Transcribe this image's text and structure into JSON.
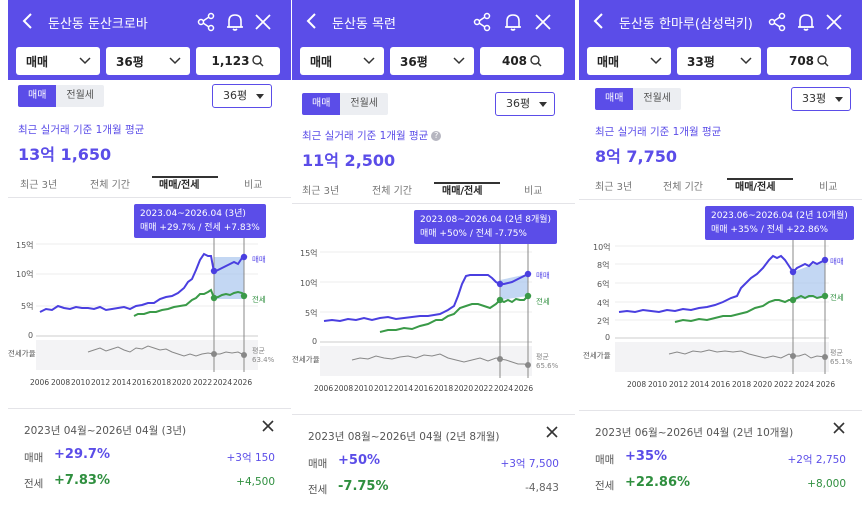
{
  "icons": [
    "back-icon",
    "share-icon",
    "bell-icon",
    "close-icon",
    "chevron-down-icon",
    "search-icon"
  ],
  "colors": {
    "brand": "#5b4de8",
    "sale_line": "#4a3fe0",
    "jeonse_line": "#3a9a48",
    "ratio_line": "#888888"
  },
  "panels": [
    {
      "title": "둔산동 둔산크로바",
      "trade_type": "매매",
      "size": "36평",
      "count": "1,123",
      "toggle": [
        "매매",
        "전월세"
      ],
      "size_dropdown": "36평",
      "subtitle": "최근 실거래 기준 1개월 평균",
      "price": "13억 1,650",
      "tabs": [
        "최근 3년",
        "전체 기간",
        "매매/전세",
        "비교"
      ],
      "tooltip_range": "2023.04~2026.04 (3년)",
      "tooltip_change": "매매 +29.7%  /  전세 +7.83%",
      "y_labels": [
        "15억",
        "10억",
        "5억",
        "0"
      ],
      "x_labels": [
        "2006",
        "2008",
        "2010",
        "2012",
        "2014",
        "2016",
        "2018",
        "2020",
        "2022",
        "2024",
        "2026"
      ],
      "label_sale": "매매",
      "label_jeonse": "전세",
      "label_ratio": "전세가율",
      "avg_label": "평균",
      "avg_value": "63.4%",
      "summary_period": "2023년 04월~2026년 04월 (3년)",
      "sale_label": "매매",
      "sale_pct": "+29.7%",
      "sale_amt": "+3억 150",
      "jeonse_label": "전세",
      "jeonse_pct": "+7.83%",
      "jeonse_amt": "+4,500"
    },
    {
      "title": "둔산동 목련",
      "trade_type": "매매",
      "size": "36평",
      "count": "408",
      "toggle": [
        "매매",
        "전월세"
      ],
      "size_dropdown": "36평",
      "subtitle": "최근 실거래 기준 1개월 평균",
      "price": "11억 2,500",
      "tabs": [
        "최근 3년",
        "전체 기간",
        "매매/전세",
        "비교"
      ],
      "tooltip_range": "2023.08~2026.04 (2년 8개월)",
      "tooltip_change": "매매 +50%  /  전세 -7.75%",
      "y_labels": [
        "15억",
        "10억",
        "5억",
        "0"
      ],
      "x_labels": [
        "2006",
        "2008",
        "2010",
        "2012",
        "2014",
        "2016",
        "2018",
        "2020",
        "2022",
        "2024",
        "2026"
      ],
      "label_sale": "매매",
      "label_jeonse": "전세",
      "label_ratio": "전세가율",
      "avg_label": "평균",
      "avg_value": "65.6%",
      "summary_period": "2023년 08월~2026년 04월 (2년 8개월)",
      "sale_label": "매매",
      "sale_pct": "+50%",
      "sale_amt": "+3억 7,500",
      "jeonse_label": "전세",
      "jeonse_pct": "-7.75%",
      "jeonse_amt": "-4,843"
    },
    {
      "title": "둔산동 한마루(삼성럭키)",
      "trade_type": "매매",
      "size": "33평",
      "count": "708",
      "toggle": [
        "매매",
        "전월세"
      ],
      "size_dropdown": "33평",
      "subtitle": "최근 실거래 기준 1개월 평균",
      "price": "8억 7,750",
      "tabs": [
        "최근 3년",
        "전체 기간",
        "매매/전세",
        "비교"
      ],
      "tooltip_range": "2023.06~2026.04 (2년 10개월)",
      "tooltip_change": "매매 +35%  /  전세 +22.86%",
      "y_labels": [
        "10억",
        "8억",
        "6억",
        "4억",
        "2억",
        "0"
      ],
      "x_labels": [
        "2008",
        "2010",
        "2012",
        "2014",
        "2016",
        "2018",
        "2020",
        "2022",
        "2024",
        "2026"
      ],
      "label_sale": "매매",
      "label_jeonse": "전세",
      "label_ratio": "전세가율",
      "avg_label": "평균",
      "avg_value": "65.1%",
      "summary_period": "2023년 06월~2026년 04월 (2년 10개월)",
      "sale_label": "매매",
      "sale_pct": "+35%",
      "sale_amt": "+2억 2,750",
      "jeonse_label": "전세",
      "jeonse_pct": "+22.86%",
      "jeonse_amt": "+8,000"
    }
  ]
}
